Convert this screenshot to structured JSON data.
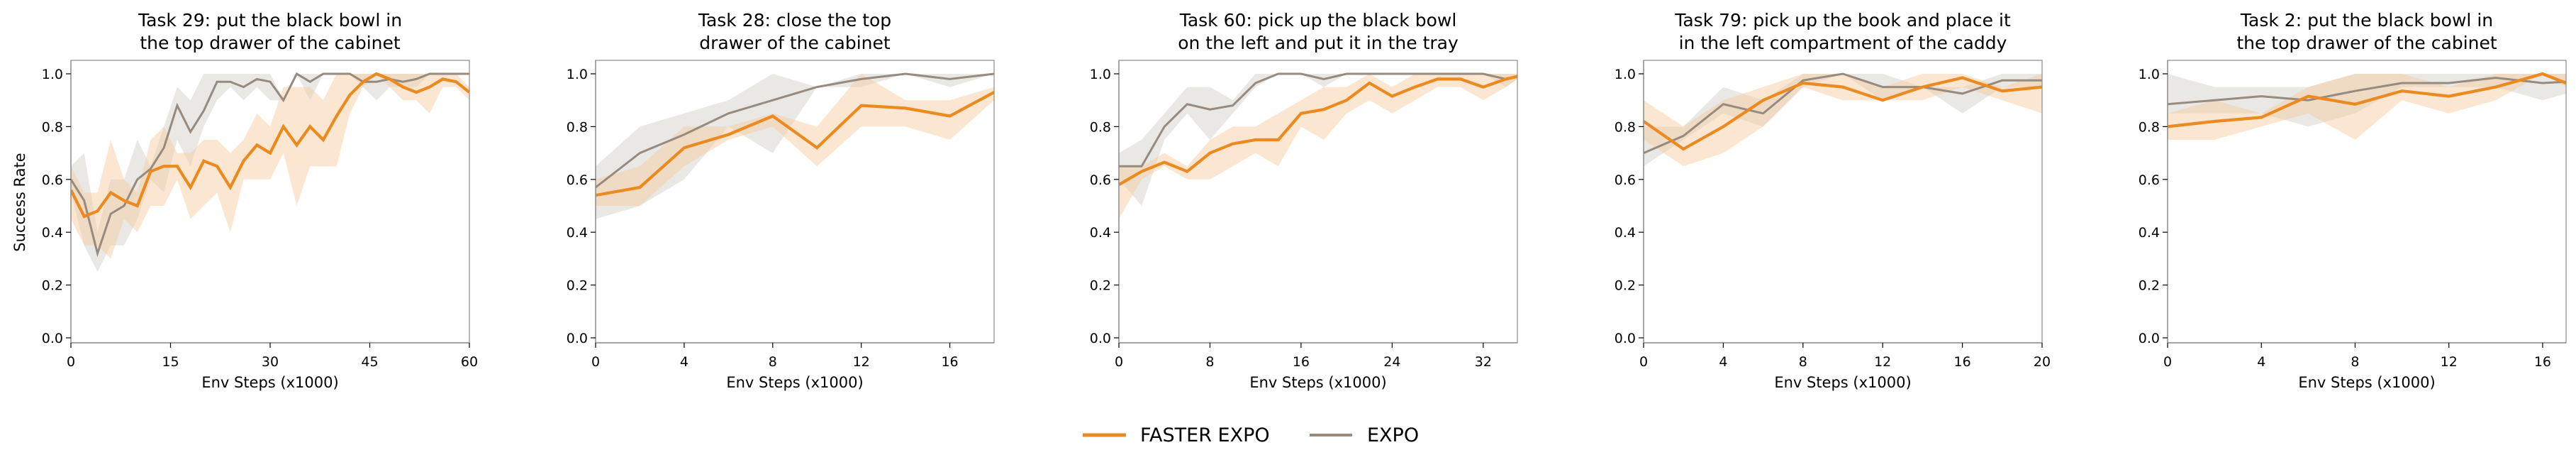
{
  "colors": {
    "faster_expo": "#EA8A20",
    "expo": "#978A7E",
    "faster_expo_band": "#F7C998",
    "expo_band": "#D5D1CB",
    "axis": "#8c8c8c"
  },
  "legend": {
    "position": "bottom-center",
    "items": [
      {
        "label": "FASTER EXPO",
        "series": "faster_expo"
      },
      {
        "label": "EXPO",
        "series": "expo"
      }
    ]
  },
  "chart_data": [
    {
      "type": "line",
      "title": [
        "Task 29: put the black bowl in",
        "the top drawer of the cabinet"
      ],
      "xlabel": "Env Steps (x1000)",
      "ylabel": "Success Rate",
      "xlim": [
        0,
        60
      ],
      "ylim": [
        -0.02,
        1.05
      ],
      "xticks": [
        0,
        15,
        30,
        45,
        60
      ],
      "yticks": [
        0.0,
        0.2,
        0.4,
        0.6,
        0.8,
        1.0
      ],
      "ytick_labels": [
        "0.0",
        "0.2",
        "0.4",
        "0.6",
        "0.8",
        "1.0"
      ],
      "x": [
        0,
        2,
        4,
        6,
        8,
        10,
        12,
        14,
        16,
        18,
        20,
        22,
        24,
        26,
        28,
        30,
        32,
        34,
        36,
        38,
        40,
        42,
        44,
        46,
        48,
        50,
        52,
        54,
        56,
        58,
        60
      ],
      "series": [
        {
          "name": "FASTER EXPO",
          "key": "faster_expo",
          "values": [
            0.56,
            0.46,
            0.48,
            0.55,
            0.52,
            0.5,
            0.63,
            0.65,
            0.65,
            0.57,
            0.67,
            0.65,
            0.57,
            0.67,
            0.73,
            0.7,
            0.8,
            0.73,
            0.8,
            0.75,
            0.84,
            0.92,
            0.97,
            1.0,
            0.98,
            0.95,
            0.93,
            0.95,
            0.98,
            0.97,
            0.93
          ],
          "low": [
            0.45,
            0.35,
            0.35,
            0.3,
            0.45,
            0.4,
            0.5,
            0.5,
            0.6,
            0.45,
            0.5,
            0.55,
            0.4,
            0.6,
            0.6,
            0.6,
            0.7,
            0.5,
            0.65,
            0.65,
            0.65,
            0.85,
            0.95,
            1.0,
            0.95,
            0.9,
            0.9,
            0.85,
            0.95,
            0.95,
            0.9
          ],
          "high": [
            0.65,
            0.55,
            0.55,
            0.75,
            0.6,
            0.55,
            0.75,
            0.8,
            0.7,
            0.7,
            0.75,
            0.75,
            0.7,
            0.75,
            0.85,
            0.8,
            0.95,
            0.95,
            0.95,
            0.9,
            1.0,
            1.0,
            1.0,
            1.0,
            1.0,
            1.0,
            1.0,
            1.0,
            1.0,
            1.0,
            0.95
          ]
        },
        {
          "name": "EXPO",
          "key": "expo",
          "values": [
            0.6,
            0.52,
            0.32,
            0.47,
            0.5,
            0.6,
            0.64,
            0.72,
            0.88,
            0.78,
            0.86,
            0.97,
            0.97,
            0.95,
            0.98,
            0.97,
            0.9,
            1.0,
            0.97,
            1.0,
            1.0,
            1.0,
            0.97,
            0.97,
            0.98,
            0.97,
            0.98,
            1.0,
            1.0,
            1.0,
            1.0
          ],
          "low": [
            0.55,
            0.35,
            0.25,
            0.35,
            0.35,
            0.45,
            0.6,
            0.55,
            0.75,
            0.65,
            0.8,
            0.9,
            0.95,
            0.9,
            0.95,
            0.9,
            0.9,
            1.0,
            0.9,
            1.0,
            1.0,
            1.0,
            0.95,
            0.9,
            0.95,
            0.95,
            0.95,
            1.0,
            1.0,
            1.0,
            1.0
          ],
          "high": [
            0.65,
            0.7,
            0.4,
            0.6,
            0.6,
            0.75,
            0.65,
            0.8,
            0.95,
            0.9,
            1.0,
            1.0,
            1.0,
            1.0,
            1.0,
            1.0,
            0.9,
            1.0,
            1.0,
            1.0,
            1.0,
            1.0,
            1.0,
            1.0,
            1.0,
            1.0,
            1.0,
            1.0,
            1.0,
            1.0,
            1.0
          ]
        }
      ]
    },
    {
      "type": "line",
      "title": [
        "Task 28: close the top",
        "drawer of the cabinet"
      ],
      "xlabel": "Env Steps (x1000)",
      "ylabel": "",
      "xlim": [
        0,
        18
      ],
      "ylim": [
        -0.02,
        1.05
      ],
      "xticks": [
        0,
        4,
        8,
        12,
        16
      ],
      "yticks": [
        0.0,
        0.2,
        0.4,
        0.6,
        0.8,
        1.0
      ],
      "ytick_labels": [
        "0.0",
        "0.2",
        "0.4",
        "0.6",
        "0.8",
        "1.0"
      ],
      "x": [
        0,
        2,
        4,
        6,
        8,
        10,
        12,
        14,
        16,
        18
      ],
      "series": [
        {
          "name": "FASTER EXPO",
          "key": "faster_expo",
          "values": [
            0.54,
            0.57,
            0.72,
            0.77,
            0.84,
            0.72,
            0.88,
            0.87,
            0.84,
            0.93
          ],
          "low": [
            0.5,
            0.5,
            0.65,
            0.75,
            0.8,
            0.65,
            0.8,
            0.8,
            0.75,
            0.9
          ],
          "high": [
            0.6,
            0.65,
            0.8,
            0.8,
            0.85,
            0.8,
            1.0,
            0.9,
            0.9,
            0.95
          ]
        },
        {
          "name": "EXPO",
          "key": "expo",
          "values": [
            0.57,
            0.7,
            0.77,
            0.85,
            0.9,
            0.95,
            0.98,
            1.0,
            0.98,
            1.0
          ],
          "low": [
            0.45,
            0.5,
            0.6,
            0.8,
            0.7,
            0.95,
            0.95,
            1.0,
            0.95,
            1.0
          ],
          "high": [
            0.65,
            0.8,
            0.85,
            0.9,
            1.0,
            0.95,
            1.0,
            1.0,
            1.0,
            1.0
          ]
        }
      ]
    },
    {
      "type": "line",
      "title": [
        "Task 60: pick up the black bowl",
        "on the left and put it in the tray"
      ],
      "xlabel": "Env Steps (x1000)",
      "ylabel": "",
      "xlim": [
        0,
        35
      ],
      "ylim": [
        -0.02,
        1.05
      ],
      "xticks": [
        0,
        8,
        16,
        24,
        32
      ],
      "yticks": [
        0.0,
        0.2,
        0.4,
        0.6,
        0.8,
        1.0
      ],
      "ytick_labels": [
        "0.0",
        "0.2",
        "0.4",
        "0.6",
        "0.8",
        "1.0"
      ],
      "x": [
        0,
        2,
        4,
        6,
        8,
        10,
        12,
        14,
        16,
        18,
        20,
        22,
        24,
        26,
        28,
        30,
        32,
        34,
        35
      ],
      "series": [
        {
          "name": "FASTER EXPO",
          "key": "faster_expo",
          "values": [
            0.58,
            0.63,
            0.665,
            0.63,
            0.7,
            0.735,
            0.75,
            0.75,
            0.85,
            0.865,
            0.9,
            0.965,
            0.915,
            0.95,
            0.98,
            0.98,
            0.95,
            0.98,
            0.99
          ],
          "low": [
            0.45,
            0.6,
            0.65,
            0.6,
            0.6,
            0.65,
            0.7,
            0.65,
            0.8,
            0.75,
            0.85,
            0.9,
            0.85,
            0.9,
            0.95,
            0.95,
            0.9,
            0.95,
            0.98
          ],
          "high": [
            0.65,
            0.65,
            0.7,
            0.65,
            0.75,
            0.8,
            0.8,
            0.85,
            0.9,
            0.95,
            0.95,
            1.0,
            0.95,
            1.0,
            1.0,
            1.0,
            1.0,
            1.0,
            1.0
          ]
        },
        {
          "name": "EXPO",
          "key": "expo",
          "values": [
            0.65,
            0.65,
            0.8,
            0.885,
            0.865,
            0.88,
            0.965,
            1.0,
            1.0,
            0.98,
            1.0,
            1.0,
            1.0,
            1.0,
            1.0,
            1.0,
            1.0,
            0.98,
            0.99
          ],
          "low": [
            0.6,
            0.5,
            0.75,
            0.85,
            0.75,
            0.85,
            0.95,
            1.0,
            1.0,
            0.95,
            1.0,
            1.0,
            1.0,
            1.0,
            1.0,
            1.0,
            1.0,
            0.95,
            0.98
          ],
          "high": [
            0.7,
            0.75,
            0.85,
            0.95,
            0.95,
            0.9,
            1.0,
            1.0,
            1.0,
            1.0,
            1.0,
            1.0,
            1.0,
            1.0,
            1.0,
            1.0,
            1.0,
            1.0,
            1.0
          ]
        }
      ]
    },
    {
      "type": "line",
      "title": [
        "Task 79: pick up the book and place it",
        "in the left compartment of the caddy"
      ],
      "xlabel": "Env Steps (x1000)",
      "ylabel": "",
      "xlim": [
        0,
        20
      ],
      "ylim": [
        -0.02,
        1.05
      ],
      "xticks": [
        0,
        4,
        8,
        12,
        16,
        20
      ],
      "yticks": [
        0.0,
        0.2,
        0.4,
        0.6,
        0.8,
        1.0
      ],
      "ytick_labels": [
        "0.0",
        "0.2",
        "0.4",
        "0.6",
        "0.8",
        "1.0"
      ],
      "x": [
        0,
        2,
        4,
        6,
        8,
        10,
        12,
        14,
        16,
        18,
        20
      ],
      "series": [
        {
          "name": "FASTER EXPO",
          "key": "faster_expo",
          "values": [
            0.82,
            0.715,
            0.8,
            0.9,
            0.965,
            0.95,
            0.9,
            0.95,
            0.985,
            0.935,
            0.95
          ],
          "low": [
            0.75,
            0.65,
            0.7,
            0.8,
            0.95,
            0.9,
            0.9,
            0.9,
            0.95,
            0.9,
            0.85
          ],
          "high": [
            0.9,
            0.8,
            0.9,
            0.95,
            1.0,
            1.0,
            0.95,
            1.0,
            1.0,
            0.95,
            1.0
          ]
        },
        {
          "name": "EXPO",
          "key": "expo",
          "values": [
            0.7,
            0.765,
            0.885,
            0.85,
            0.975,
            1.0,
            0.95,
            0.95,
            0.925,
            0.975,
            0.975
          ],
          "low": [
            0.65,
            0.75,
            0.85,
            0.8,
            0.95,
            1.0,
            0.9,
            0.95,
            0.85,
            0.95,
            0.95
          ],
          "high": [
            0.8,
            0.8,
            0.95,
            0.9,
            1.0,
            1.0,
            1.0,
            0.95,
            0.95,
            1.0,
            1.0
          ]
        }
      ]
    },
    {
      "type": "line",
      "title": [
        "Task 2: put the black bowl in",
        "the top drawer of the cabinet"
      ],
      "xlabel": "Env Steps (x1000)",
      "ylabel": "",
      "xlim": [
        0,
        17
      ],
      "ylim": [
        -0.02,
        1.05
      ],
      "xticks": [
        0,
        4,
        8,
        12,
        16
      ],
      "yticks": [
        0.0,
        0.2,
        0.4,
        0.6,
        0.8,
        1.0
      ],
      "ytick_labels": [
        "0.0",
        "0.2",
        "0.4",
        "0.6",
        "0.8",
        "1.0"
      ],
      "x": [
        0,
        2,
        4,
        6,
        8,
        10,
        12,
        14,
        16,
        17
      ],
      "series": [
        {
          "name": "FASTER EXPO",
          "key": "faster_expo",
          "values": [
            0.8,
            0.82,
            0.835,
            0.915,
            0.885,
            0.935,
            0.915,
            0.95,
            1.0,
            0.965
          ],
          "low": [
            0.75,
            0.75,
            0.8,
            0.85,
            0.75,
            0.9,
            0.85,
            0.9,
            1.0,
            0.95
          ],
          "high": [
            0.85,
            0.9,
            0.85,
            0.95,
            1.0,
            1.0,
            0.95,
            1.0,
            1.0,
            1.0
          ]
        },
        {
          "name": "EXPO",
          "key": "expo",
          "values": [
            0.885,
            0.9,
            0.915,
            0.9,
            0.935,
            0.965,
            0.965,
            0.985,
            0.965,
            0.97
          ],
          "low": [
            0.85,
            0.85,
            0.85,
            0.8,
            0.85,
            0.95,
            0.95,
            0.95,
            0.9,
            0.925
          ],
          "high": [
            1.0,
            0.95,
            0.95,
            0.95,
            1.0,
            1.0,
            1.0,
            1.0,
            1.0,
            1.0
          ]
        }
      ]
    }
  ]
}
